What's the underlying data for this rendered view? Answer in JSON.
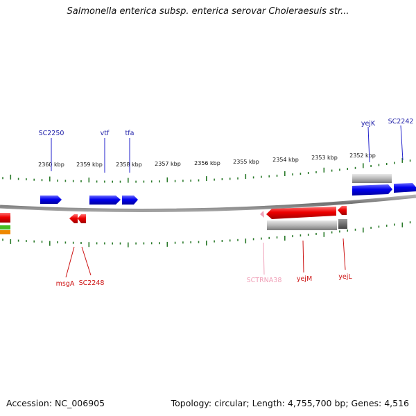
{
  "header": {
    "title": "Salmonella enterica subsp. enterica serovar Choleraesuis str..."
  },
  "footer": {
    "accession": "Accession: NC_006905",
    "summary": "Topology: circular; Length: 4,755,700 bp; Genes: 4,516"
  },
  "colors": {
    "forward_gene": "#0000ee",
    "reverse_gene": "#ee0000",
    "forward_label": "#1a1aa6",
    "reverse_label": "#cc1111",
    "rna_gene": "#f0a0b8",
    "pseudo_gene": "#b0b0b0",
    "tick": "#2a7a2a",
    "backbone": "#888888"
  },
  "scale": {
    "unit": "kbp",
    "ticks": [
      {
        "kbp": 2360,
        "label": "2360 kbp"
      },
      {
        "kbp": 2359,
        "label": "2359 kbp"
      },
      {
        "kbp": 2358,
        "label": "2358 kbp"
      },
      {
        "kbp": 2357,
        "label": "2357 kbp"
      },
      {
        "kbp": 2356,
        "label": "2356 kbp"
      },
      {
        "kbp": 2355,
        "label": "2355 kbp"
      },
      {
        "kbp": 2354,
        "label": "2354 kbp"
      },
      {
        "kbp": 2353,
        "label": "2353 kbp"
      },
      {
        "kbp": 2352,
        "label": "2352 kbp"
      }
    ]
  },
  "genes": {
    "forward": [
      {
        "name": "SC2250"
      },
      {
        "name": "vtf"
      },
      {
        "name": "tfa"
      },
      {
        "name": "yejK"
      },
      {
        "name": "SC2242"
      }
    ],
    "reverse": [
      {
        "name": "msgA"
      },
      {
        "name": "SC2248"
      },
      {
        "name": "SCTRNA38"
      },
      {
        "name": "yejM"
      },
      {
        "name": "yejL"
      }
    ]
  }
}
